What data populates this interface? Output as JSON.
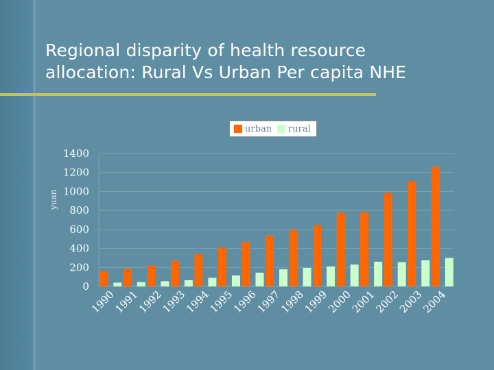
{
  "slide": {
    "title_line1": "Regional disparity of health resource",
    "title_line2": "allocation: Rural Vs Urban Per capita NHE"
  },
  "colors": {
    "background": "#5f8ea3",
    "urban": "#ff6600",
    "rural": "#ccffcc",
    "rule": "#c8c25a"
  },
  "chart_data": {
    "type": "bar",
    "title": "",
    "xlabel": "",
    "ylabel": "yuan",
    "ylim": [
      0,
      1400
    ],
    "yticks": [
      0,
      200,
      400,
      600,
      800,
      1000,
      1200,
      1400
    ],
    "legend_position": "top-center",
    "grid": true,
    "categories": [
      "1990",
      "1991",
      "1992",
      "1993",
      "1994",
      "1995",
      "1996",
      "1997",
      "1998",
      "1999",
      "2000",
      "2001",
      "2002",
      "2003",
      "2004"
    ],
    "series": [
      {
        "name": "urban",
        "color": "#ff6600",
        "values": [
          160,
          185,
          220,
          270,
          340,
          405,
          470,
          535,
          595,
          645,
          775,
          780,
          985,
          1110,
          1260
        ]
      },
      {
        "name": "rural",
        "color": "#ccffcc",
        "values": [
          40,
          45,
          55,
          65,
          90,
          115,
          145,
          180,
          195,
          210,
          230,
          260,
          255,
          275,
          300
        ]
      }
    ]
  }
}
